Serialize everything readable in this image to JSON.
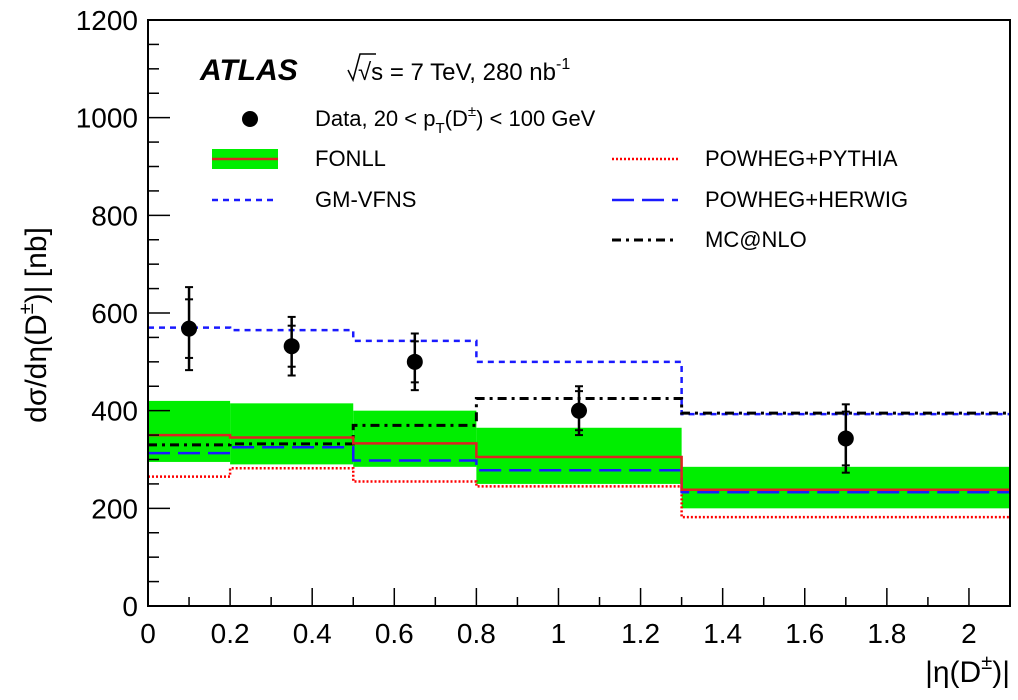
{
  "chart_data": {
    "type": "step-histogram with data points",
    "experiment": "ATLAS",
    "energy_label": "√s = 7 TeV, 280 nb",
    "lumi_exponent": "-1",
    "xlabel": {
      "main": "|η(D",
      "sup": "±",
      "close": ")|"
    },
    "ylabel": {
      "main": "dσ/dη(D",
      "sup": "±",
      "close": ")| [nb]"
    },
    "xlim": [
      0,
      2.1
    ],
    "ylim": [
      0,
      1200
    ],
    "x_ticks": [
      {
        "v": 0,
        "label": "0"
      },
      {
        "v": 0.2,
        "label": "0.2"
      },
      {
        "v": 0.4,
        "label": "0.4"
      },
      {
        "v": 0.6,
        "label": "0.6"
      },
      {
        "v": 0.8,
        "label": "0.8"
      },
      {
        "v": 1.0,
        "label": "1"
      },
      {
        "v": 1.2,
        "label": "1.2"
      },
      {
        "v": 1.4,
        "label": "1.4"
      },
      {
        "v": 1.6,
        "label": "1.6"
      },
      {
        "v": 1.8,
        "label": "1.8"
      },
      {
        "v": 2.0,
        "label": "2"
      }
    ],
    "y_ticks": [
      {
        "v": 0,
        "label": "0"
      },
      {
        "v": 200,
        "label": "200"
      },
      {
        "v": 400,
        "label": "400"
      },
      {
        "v": 600,
        "label": "600"
      },
      {
        "v": 800,
        "label": "800"
      },
      {
        "v": 1000,
        "label": "1000"
      },
      {
        "v": 1200,
        "label": "1200"
      }
    ],
    "bin_edges": [
      0,
      0.2,
      0.5,
      0.8,
      1.3,
      2.1
    ],
    "data": {
      "name": "Data,  20 < p",
      "name_sub": "T",
      "name_rest": "(D",
      "name_sup": "±",
      "name_end": ") < 100 GeV",
      "points": [
        {
          "x": 0.1,
          "y": 568,
          "stat": 60,
          "tot": 85
        },
        {
          "x": 0.35,
          "y": 532,
          "stat": 42,
          "tot": 60
        },
        {
          "x": 0.65,
          "y": 500,
          "stat": 42,
          "tot": 58
        },
        {
          "x": 1.05,
          "y": 400,
          "stat": 40,
          "tot": 50
        },
        {
          "x": 1.7,
          "y": 343,
          "stat": 55,
          "tot": 70
        }
      ]
    },
    "fonll": {
      "name": "FONLL",
      "central": [
        350,
        345,
        333,
        305,
        238
      ],
      "lo": [
        295,
        290,
        285,
        250,
        200
      ],
      "hi": [
        420,
        415,
        400,
        365,
        285
      ],
      "band_color": "#00ee00",
      "line_color": "#dd2222"
    },
    "models": [
      {
        "name": "GM-VFNS",
        "values": [
          570,
          565,
          543,
          500,
          393
        ],
        "color": "#1a1aff",
        "dash": "6,5",
        "width": 2.5
      },
      {
        "name": "POWHEG+PYTHIA",
        "values": [
          265,
          282,
          255,
          245,
          182
        ],
        "color": "#ff0000",
        "dash": "2,2",
        "width": 2.5
      },
      {
        "name": "POWHEG+HERWIG",
        "values": [
          313,
          325,
          298,
          278,
          233
        ],
        "color": "#1a1aff",
        "dash": "22,8",
        "width": 2.5
      },
      {
        "name": "MC@NLO",
        "values": [
          330,
          332,
          370,
          425,
          395
        ],
        "color": "#000000",
        "dash": "9,5,3,5",
        "width": 3
      }
    ]
  }
}
